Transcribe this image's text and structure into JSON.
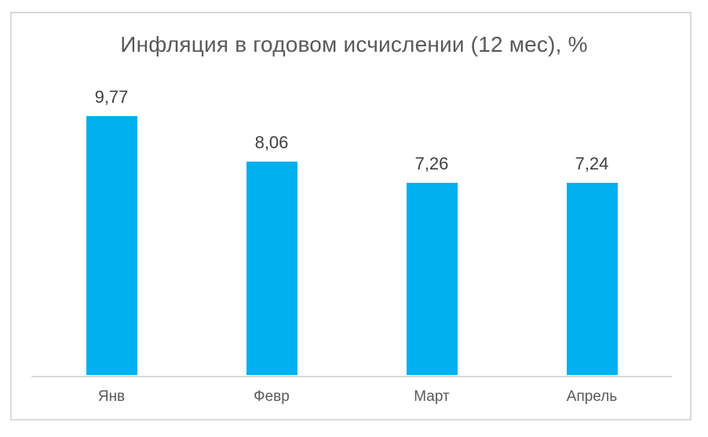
{
  "chart_data": {
    "type": "bar",
    "title": "Инфляция в годовом исчислении (12 мес), %",
    "categories": [
      "Янв",
      "Февр",
      "Март",
      "Апрель"
    ],
    "values": [
      9.77,
      8.06,
      7.26,
      7.24
    ],
    "value_labels": [
      "9,77",
      "8,06",
      "7,26",
      "7,24"
    ],
    "xlabel": "",
    "ylabel": "",
    "legend": "none",
    "gridlines": false,
    "y_axis_visible": false,
    "data_labels_visible": true,
    "colors": {
      "bar": "#00b0f0",
      "title": "#595959",
      "value_label": "#404040",
      "category_label": "#595959",
      "axis_line": "#d9d9d9",
      "frame_border": "#d9d9d9",
      "background": "#ffffff"
    }
  }
}
